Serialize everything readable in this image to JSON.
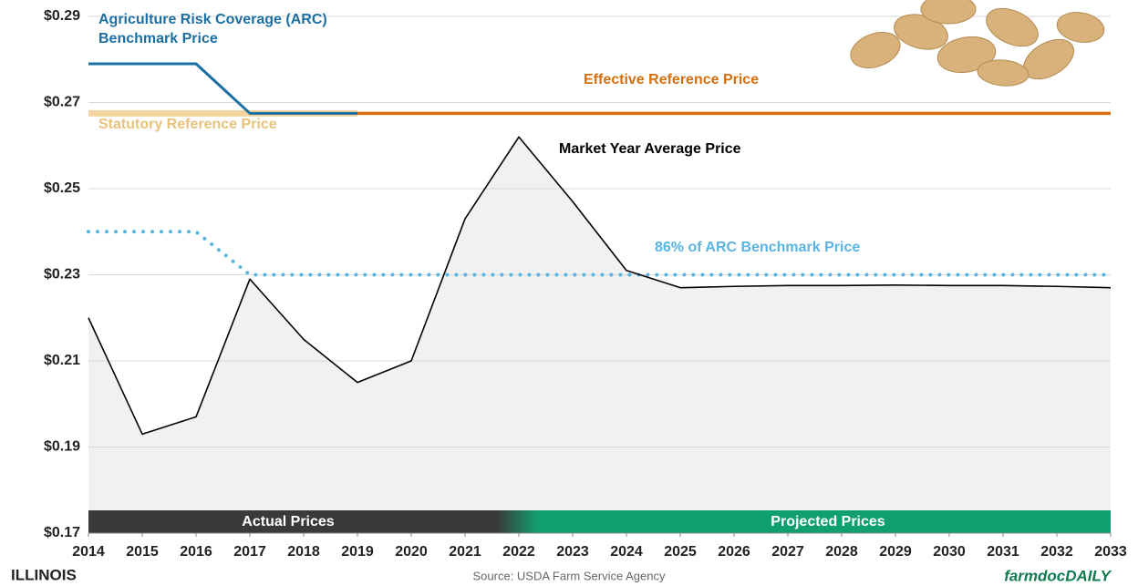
{
  "chart_data": {
    "type": "line",
    "x": [
      2014,
      2015,
      2016,
      2017,
      2018,
      2019,
      2020,
      2021,
      2022,
      2023,
      2024,
      2025,
      2026,
      2027,
      2028,
      2029,
      2030,
      2031,
      2032,
      2033
    ],
    "xlim": [
      2014,
      2033
    ],
    "xticks": [
      2014,
      2015,
      2016,
      2017,
      2018,
      2019,
      2020,
      2021,
      2022,
      2023,
      2024,
      2025,
      2026,
      2027,
      2028,
      2029,
      2030,
      2031,
      2032,
      2033
    ],
    "ylim": [
      0.17,
      0.29
    ],
    "yticks": [
      {
        "value": 0.17,
        "label": "$0.17"
      },
      {
        "value": 0.19,
        "label": "$0.19"
      },
      {
        "value": 0.21,
        "label": "$0.21"
      },
      {
        "value": 0.23,
        "label": "$0.23"
      },
      {
        "value": 0.25,
        "label": "$0.25"
      },
      {
        "value": 0.27,
        "label": "$0.27"
      },
      {
        "value": 0.29,
        "label": "$0.29"
      }
    ],
    "grid": true,
    "series": [
      {
        "name": "Statutory Reference Price",
        "color": "#f2d49f",
        "values": [
          0.2675,
          0.2675,
          0.2675,
          0.2675,
          0.2675,
          0.2675,
          null,
          null,
          null,
          null,
          null,
          null,
          null,
          null,
          null,
          null,
          null,
          null,
          null,
          null
        ]
      },
      {
        "name": "Agriculture Risk Coverage (ARC) Benchmark Price",
        "color": "#1b6fa3",
        "values": [
          0.279,
          0.279,
          0.279,
          0.2675,
          0.2675,
          0.2675,
          null,
          null,
          null,
          null,
          null,
          null,
          null,
          null,
          null,
          null,
          null,
          null,
          null,
          null
        ]
      },
      {
        "name": "Effective Reference Price",
        "color": "#d4700f",
        "values": [
          null,
          null,
          null,
          null,
          null,
          0.2675,
          0.2675,
          0.2675,
          0.2675,
          0.2675,
          0.2675,
          0.2675,
          0.2675,
          0.2675,
          0.2675,
          0.2675,
          0.2675,
          0.2675,
          0.2675,
          0.2675
        ]
      },
      {
        "name": "86% of ARC Benchmark Price",
        "color": "#5ab4e2",
        "values": [
          0.24,
          0.24,
          0.24,
          0.23,
          0.23,
          0.23,
          0.23,
          0.23,
          0.23,
          0.23,
          0.23,
          0.23,
          0.23,
          0.23,
          0.23,
          0.23,
          0.23,
          0.23,
          0.23,
          0.23
        ]
      },
      {
        "name": "Market Year Average Price",
        "color": "#000000",
        "values": [
          0.22,
          0.193,
          0.197,
          0.229,
          0.215,
          0.205,
          0.21,
          0.243,
          0.262,
          0.247,
          0.231,
          0.227,
          0.2273,
          0.2275,
          0.2275,
          0.2276,
          0.2275,
          0.2275,
          0.2273,
          0.227
        ]
      }
    ],
    "annotations": [
      "Actual Prices",
      "Projected Prices"
    ],
    "footer": {
      "logo": "ILLINOIS",
      "source": "Source: USDA Farm Service Agency",
      "brand": "farmdocDAILY"
    }
  }
}
